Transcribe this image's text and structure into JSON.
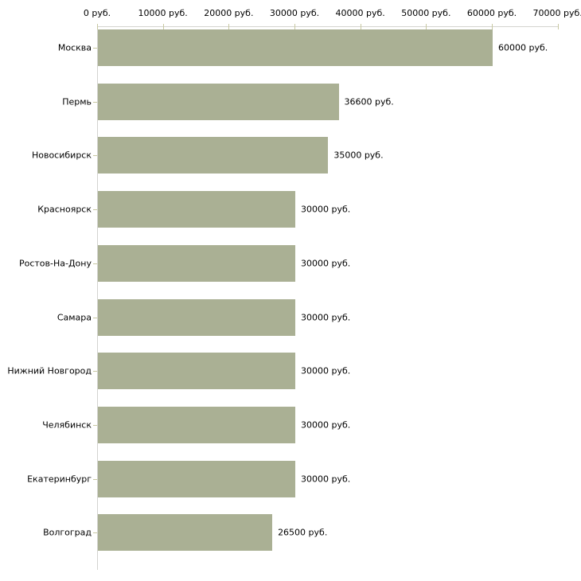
{
  "chart_data": {
    "type": "bar",
    "orientation": "horizontal",
    "title": "",
    "xlabel": "",
    "ylabel": "",
    "xlim": [
      0,
      70000
    ],
    "grid": false,
    "legend": false,
    "unit": "руб.",
    "categories": [
      "Москва",
      "Пермь",
      "Новосибирск",
      "Красноярск",
      "Ростов-На-Дону",
      "Самара",
      "Нижний Новгород",
      "Челябинск",
      "Екатеринбург",
      "Волгоград"
    ],
    "values": [
      60000,
      36600,
      35000,
      30000,
      30000,
      30000,
      30000,
      30000,
      30000,
      26500
    ],
    "value_labels": [
      "60000 руб.",
      "36600 руб.",
      "35000 руб.",
      "30000 руб.",
      "30000 руб.",
      "30000 руб.",
      "30000 руб.",
      "30000 руб.",
      "30000 руб.",
      "26500 руб."
    ],
    "x_ticks": [
      {
        "value": 0,
        "label": "0 руб."
      },
      {
        "value": 10000,
        "label": "10000 руб."
      },
      {
        "value": 20000,
        "label": "20000 руб."
      },
      {
        "value": 30000,
        "label": "30000 руб."
      },
      {
        "value": 40000,
        "label": "40000 руб."
      },
      {
        "value": 50000,
        "label": "50000 руб."
      },
      {
        "value": 60000,
        "label": "60000 руб."
      },
      {
        "value": 70000,
        "label": "70000 руб."
      }
    ],
    "colors": {
      "bar": "#aab094",
      "axis_line": "#d4d4d0",
      "tick": "#c8c8a2",
      "text": "#000000",
      "background": "#ffffff"
    }
  }
}
